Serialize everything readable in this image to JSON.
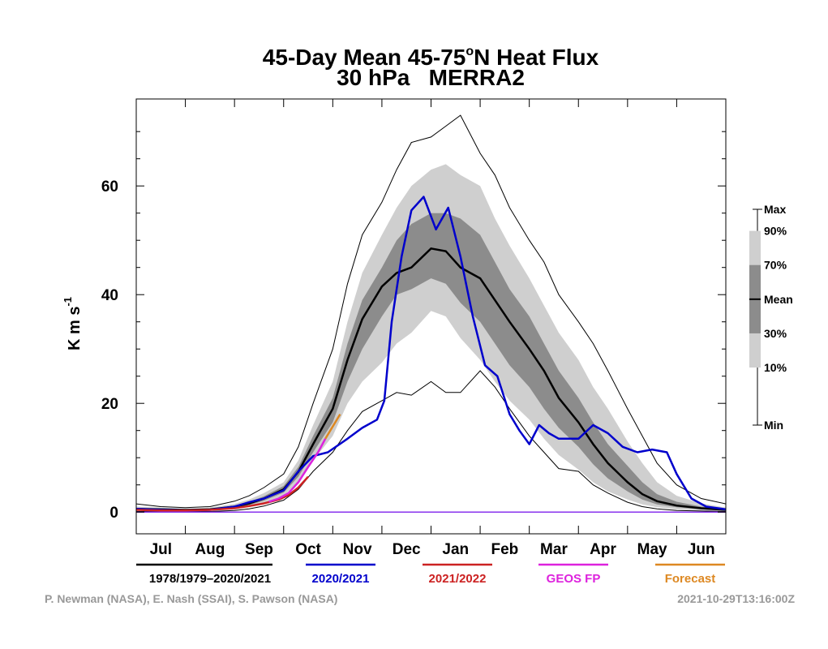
{
  "chart_data": {
    "type": "area",
    "title": "45-Day Mean 45-75°N Heat Flux",
    "title_prefix": "45-Day Mean 45-75",
    "title_degree": "o",
    "title_suffix": "N Heat Flux",
    "subtitle": "30 hPa   MERRA2",
    "ylabel": "K m s",
    "ylabel_exp": "-1",
    "ylim": [
      -4,
      76
    ],
    "yticks": [
      0,
      20,
      40,
      60
    ],
    "x_unit": "month index (0 = 1 Jul)",
    "xlim": [
      0,
      12
    ],
    "month_labels": [
      "Jul",
      "Aug",
      "Sep",
      "Oct",
      "Nov",
      "Dec",
      "Jan",
      "Feb",
      "Mar",
      "Apr",
      "May",
      "Jun"
    ],
    "grid": false,
    "legend": [
      {
        "label": "1978/1979–2020/2021",
        "color": "#000000"
      },
      {
        "label": "2020/2021",
        "color": "#0000cc"
      },
      {
        "label": "2021/2022",
        "color": "#cc2222"
      },
      {
        "label": "GEOS FP",
        "color": "#dd22dd"
      },
      {
        "label": "Forecast",
        "color": "#dd8822"
      }
    ],
    "band_labels": [
      "Max",
      "90%",
      "70%",
      "Mean",
      "30%",
      "10%",
      "Min"
    ],
    "band_colors": {
      "outer": "#cfcfcf",
      "inner": "#8c8c8c",
      "mean": "#000000",
      "envelope": "#000000"
    },
    "x": [
      0,
      0.5,
      1,
      1.5,
      2,
      2.3,
      2.6,
      3,
      3.3,
      3.6,
      4,
      4.3,
      4.6,
      5,
      5.3,
      5.6,
      6,
      6.3,
      6.6,
      7,
      7.3,
      7.6,
      8,
      8.3,
      8.6,
      9,
      9.3,
      9.6,
      10,
      10.3,
      10.6,
      11,
      11.5,
      12
    ],
    "series": [
      {
        "name": "Max",
        "values": [
          1.5,
          1,
          0.8,
          1,
          2,
          3,
          4.5,
          7,
          12,
          20,
          30,
          42,
          51,
          57,
          63,
          68,
          69,
          71,
          73,
          66,
          62,
          56,
          50,
          46,
          40,
          35,
          31,
          26,
          19,
          14,
          9,
          5,
          2.5,
          1.5
        ]
      },
      {
        "name": "90%",
        "values": [
          1.0,
          0.8,
          0.6,
          0.8,
          1.5,
          2.3,
          3.5,
          5.5,
          9.5,
          16,
          24,
          35,
          44,
          51,
          56,
          60,
          63,
          64,
          62,
          60,
          54,
          49,
          43,
          38,
          33,
          28,
          23,
          19,
          13,
          9,
          5.5,
          3,
          1.6,
          0.8
        ]
      },
      {
        "name": "70%",
        "values": [
          0.7,
          0.6,
          0.5,
          0.6,
          1.2,
          1.9,
          2.9,
          4.8,
          8.3,
          14,
          21,
          31,
          39,
          45,
          50,
          53,
          55,
          55,
          54,
          51,
          46,
          41,
          36,
          31,
          26,
          21,
          16.5,
          12.5,
          8.5,
          5.5,
          3.3,
          1.9,
          1.0,
          0.6
        ]
      },
      {
        "name": "Mean",
        "values": [
          0.6,
          0.5,
          0.4,
          0.5,
          1.0,
          1.6,
          2.5,
          4.2,
          7.4,
          12.5,
          19,
          28,
          35.5,
          41.5,
          44,
          45,
          48.5,
          48,
          45,
          43,
          39,
          35,
          30,
          26,
          21,
          16.5,
          12.5,
          9,
          5.5,
          3.3,
          2.0,
          1.2,
          0.7,
          0.4
        ]
      },
      {
        "name": "30%",
        "values": [
          0.5,
          0.4,
          0.3,
          0.4,
          0.8,
          1.3,
          2.1,
          3.6,
          6.5,
          11,
          16.5,
          24,
          30,
          36,
          40,
          41,
          43,
          42,
          38.5,
          35,
          31,
          27,
          23,
          19,
          15.5,
          12,
          8.8,
          6.2,
          3.8,
          2.3,
          1.4,
          0.9,
          0.5,
          0.3
        ]
      },
      {
        "name": "10%",
        "values": [
          0.3,
          0.25,
          0.2,
          0.3,
          0.6,
          1.0,
          1.7,
          3.0,
          5.5,
          9.5,
          14,
          20,
          24,
          27.5,
          31,
          33,
          37,
          36,
          32,
          28,
          24,
          20.5,
          17,
          13.5,
          10.5,
          7.8,
          5.5,
          3.8,
          2.3,
          1.4,
          0.9,
          0.5,
          0.3,
          0.2
        ]
      },
      {
        "name": "Min",
        "values": [
          0.1,
          0.1,
          0.1,
          0.1,
          0.3,
          0.6,
          1.1,
          2.2,
          4.2,
          7.5,
          11,
          15,
          18.5,
          20.5,
          22,
          21.5,
          24,
          22,
          22,
          26,
          23,
          19,
          14,
          11,
          8,
          7.5,
          5,
          3.5,
          1.8,
          1.0,
          0.6,
          0.3,
          0.2,
          0.1
        ]
      }
    ],
    "lines": [
      {
        "name": "2020/2021",
        "color": "#0000cc",
        "x": [
          0,
          0.5,
          1,
          1.5,
          2,
          2.3,
          2.6,
          3,
          3.3,
          3.6,
          3.9,
          4.3,
          4.6,
          4.9,
          5.05,
          5.2,
          5.4,
          5.6,
          5.85,
          6.1,
          6.35,
          6.6,
          6.85,
          7.1,
          7.35,
          7.6,
          7.8,
          8.0,
          8.2,
          8.4,
          8.6,
          9.0,
          9.3,
          9.6,
          9.9,
          10.2,
          10.5,
          10.8,
          11.0,
          11.3,
          11.6,
          12
        ],
        "values": [
          0.6,
          0.4,
          0.3,
          0.4,
          1.0,
          1.8,
          2.5,
          4.0,
          7.5,
          10.3,
          11,
          13.5,
          15.5,
          17,
          20.5,
          35,
          47,
          55.5,
          58,
          52,
          56,
          47,
          36,
          27,
          25,
          18,
          15,
          12.5,
          16,
          14.5,
          13.5,
          13.5,
          16,
          14.5,
          12,
          11,
          11.5,
          11,
          7,
          2.5,
          1,
          0.5
        ]
      },
      {
        "name": "2021/2022",
        "color": "#cc2222",
        "x": [
          0,
          0.5,
          1,
          1.5,
          2,
          2.3,
          2.6,
          2.9,
          3.1,
          3.3,
          3.5
        ],
        "values": [
          0.4,
          0.3,
          0.3,
          0.4,
          0.7,
          1.1,
          1.6,
          2.3,
          3.1,
          4.5,
          6.5
        ]
      },
      {
        "name": "GEOS FP",
        "color": "#dd22dd",
        "x": [
          2.7,
          2.9,
          3.1,
          3.3,
          3.5,
          3.7,
          3.85
        ],
        "values": [
          1.9,
          2.5,
          3.5,
          5.5,
          8.3,
          11,
          13.5
        ]
      },
      {
        "name": "Forecast",
        "color": "#dd8822",
        "x": [
          3.85,
          3.95,
          4.05,
          4.15
        ],
        "values": [
          13.5,
          15,
          16.5,
          18
        ]
      },
      {
        "name": "zero",
        "color": "#8833ee",
        "x": [
          0,
          12
        ],
        "values": [
          0,
          0
        ]
      }
    ]
  },
  "credits": {
    "authors": "P. Newman (NASA), E. Nash (SSAI), S. Pawson (NASA)",
    "timestamp": "2021-10-29T13:16:00Z"
  }
}
